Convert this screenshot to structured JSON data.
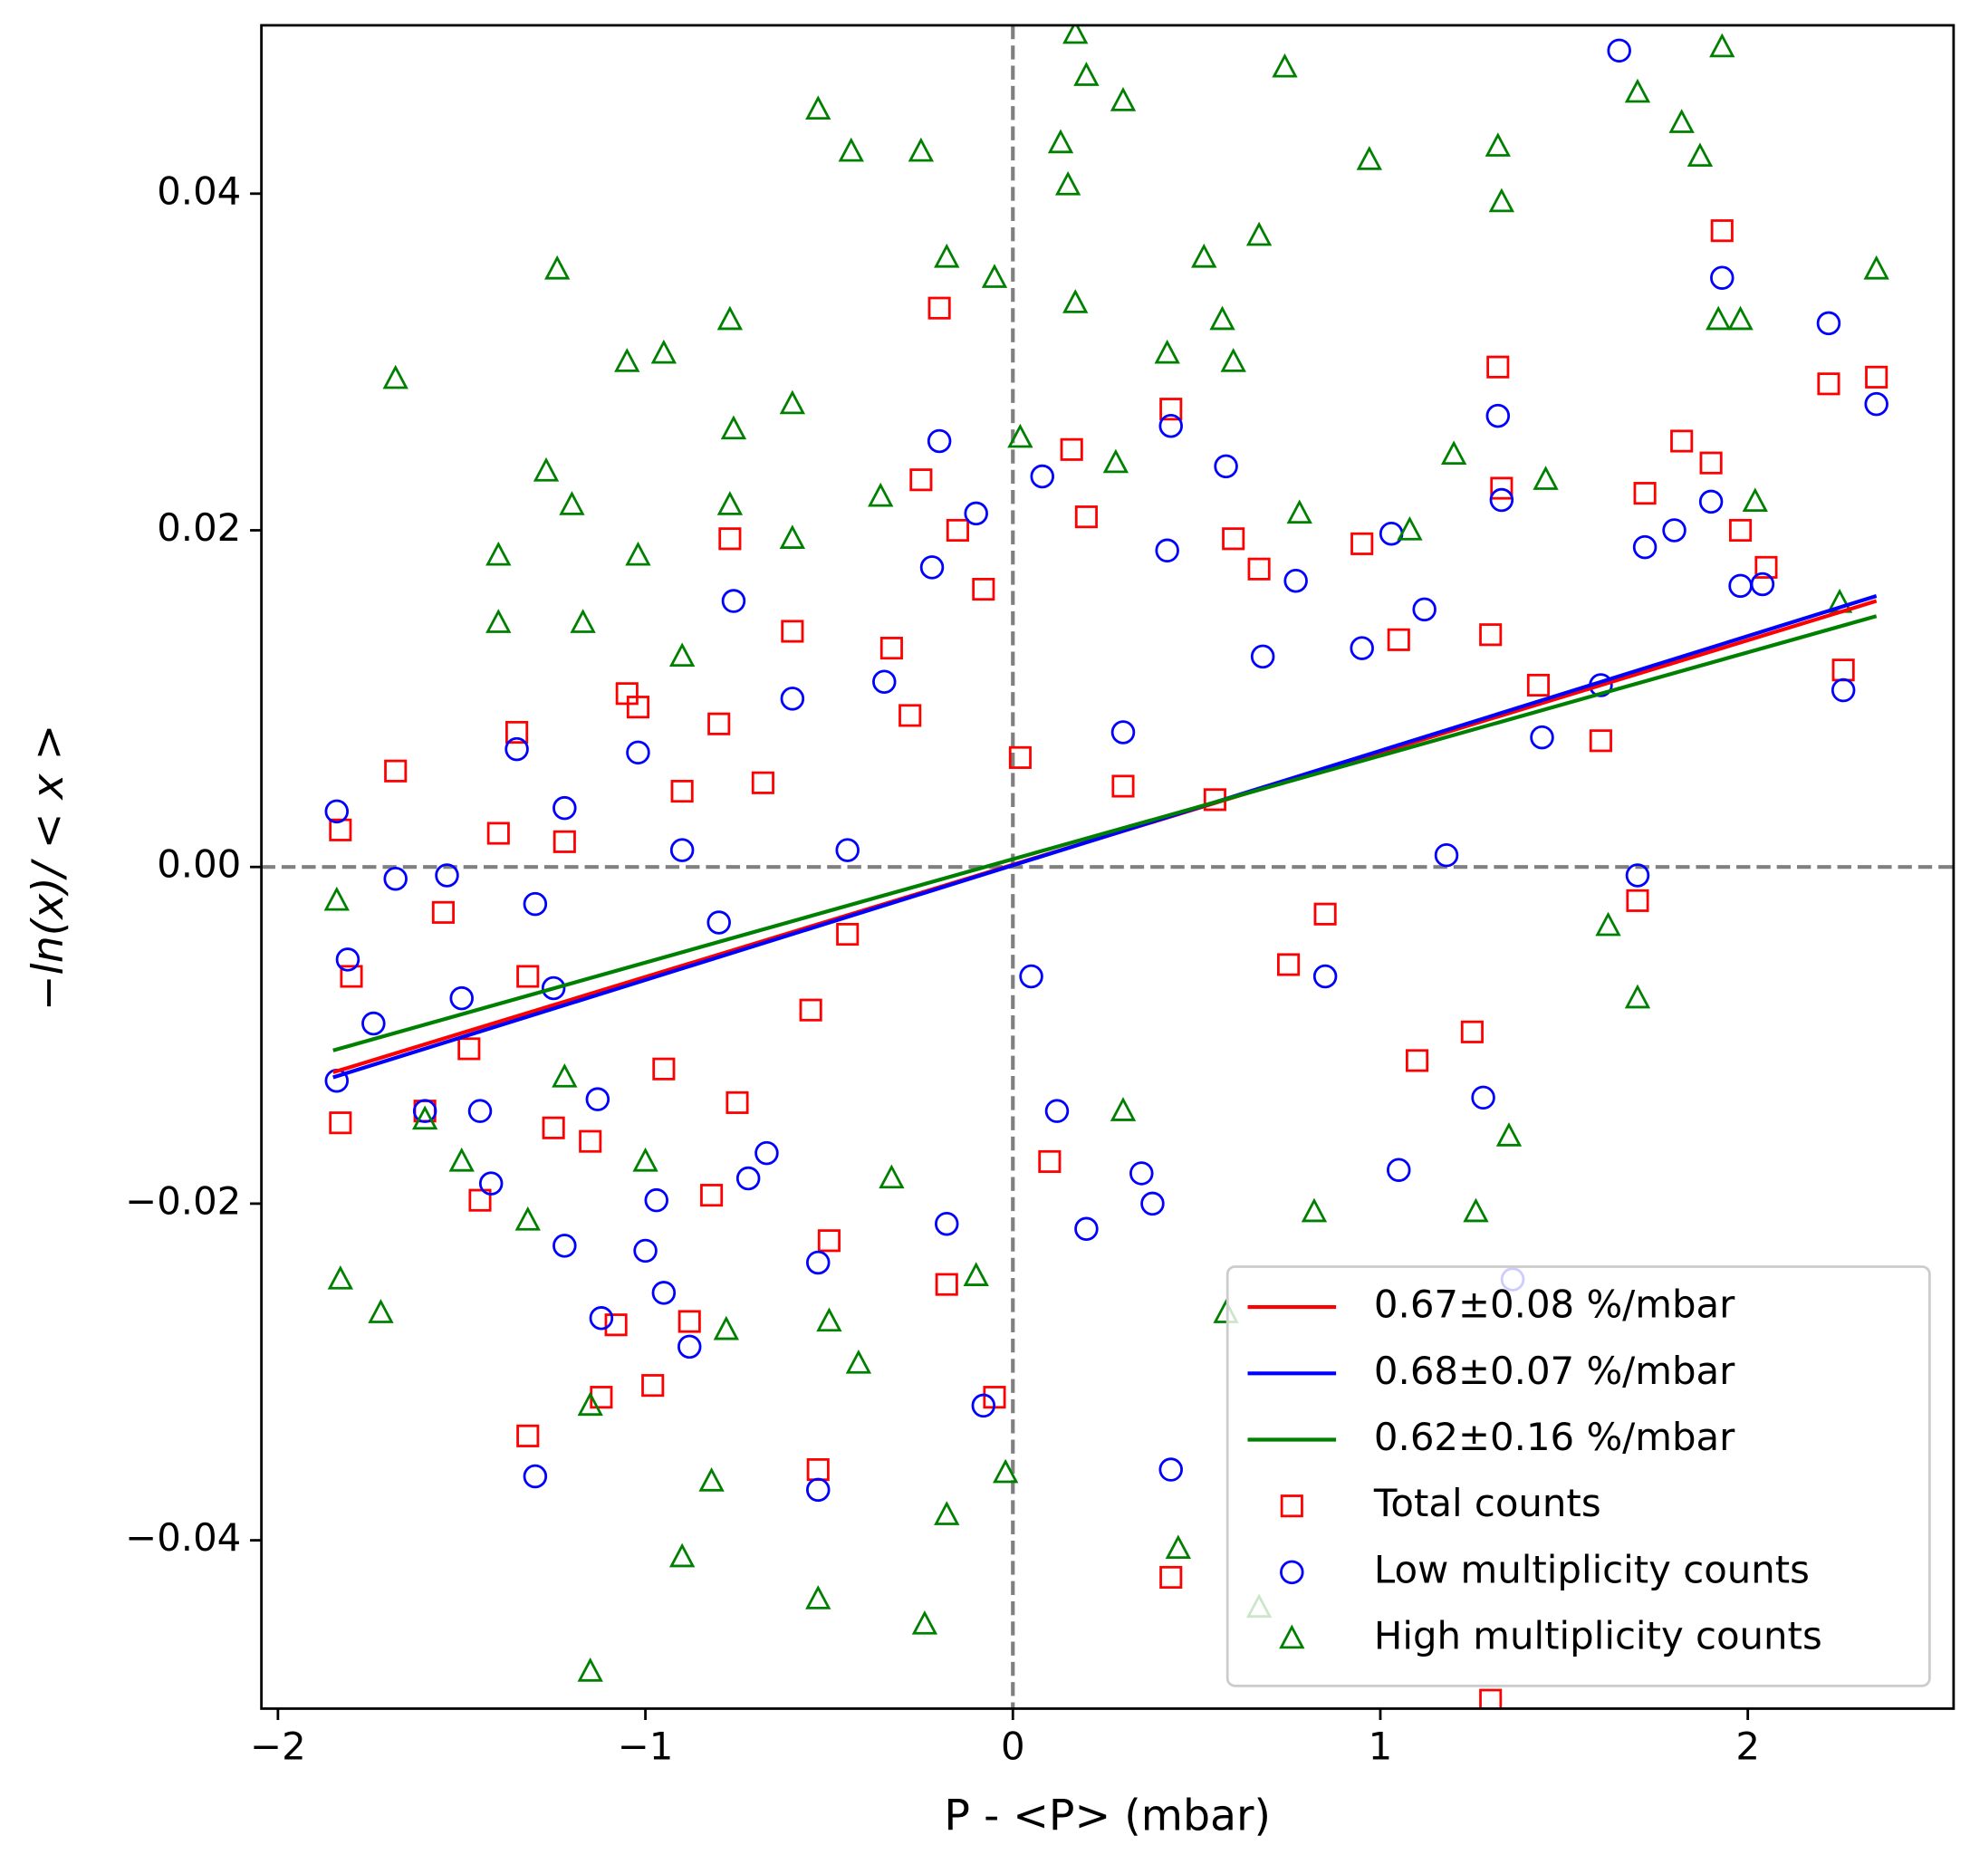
{
  "chart_data": {
    "type": "scatter",
    "x_label": "P - <P> (mbar)",
    "y_label": "−ln(x)/ < x >",
    "xlim": [
      -2.045,
      2.56
    ],
    "ylim": [
      -0.05,
      0.05
    ],
    "xticks": [
      {
        "value": -2,
        "label": "−2"
      },
      {
        "value": -1,
        "label": "−1"
      },
      0,
      1,
      2
    ],
    "yticks": [
      {
        "value": -0.04,
        "label": "−0.04"
      },
      {
        "value": -0.02,
        "label": "−0.02"
      },
      {
        "value": 0,
        "label": "0.00"
      },
      0.02,
      0.04
    ],
    "reference_lines": {
      "x": [
        0
      ],
      "y": [
        0
      ],
      "color": "#808080"
    },
    "legend": "lower right",
    "series": [
      {
        "name": "Total counts",
        "type": "scatter",
        "marker": "square",
        "color": "#ff0000",
        "x": [
          -1.83,
          -1.8,
          -1.83,
          -1.68,
          -1.6,
          -1.55,
          -1.48,
          -1.45,
          -1.4,
          -1.35,
          -1.32,
          -1.32,
          -1.25,
          -1.22,
          -1.15,
          -1.12,
          -1.08,
          -1.05,
          -1.02,
          -0.98,
          -0.95,
          -0.9,
          -0.88,
          -0.82,
          -0.8,
          -0.77,
          -0.75,
          -0.68,
          -0.6,
          -0.55,
          -0.53,
          -0.5,
          -0.45,
          -0.33,
          -0.28,
          -0.25,
          -0.2,
          -0.18,
          -0.15,
          -0.08,
          -0.05,
          0.02,
          0.1,
          0.16,
          0.2,
          0.3,
          0.43,
          0.43,
          0.55,
          0.6,
          0.67,
          0.75,
          0.85,
          0.95,
          1.05,
          1.1,
          1.25,
          1.3,
          1.32,
          1.33,
          1.3,
          1.43,
          1.6,
          1.7,
          1.72,
          1.82,
          1.9,
          1.93,
          1.98,
          2.05,
          2.22,
          2.26,
          2.35
        ],
        "values": [
          0.0022,
          -0.0065,
          -0.0152,
          0.0057,
          -0.0145,
          -0.0027,
          -0.0108,
          -0.0198,
          0.002,
          0.008,
          -0.0065,
          -0.0338,
          -0.0155,
          0.0015,
          -0.0163,
          -0.0315,
          -0.0272,
          0.0103,
          0.0095,
          -0.0308,
          -0.012,
          0.0045,
          -0.027,
          -0.0195,
          0.0085,
          0.0195,
          -0.014,
          0.005,
          0.014,
          -0.0085,
          -0.0358,
          -0.0222,
          -0.004,
          0.013,
          0.009,
          0.023,
          0.0332,
          -0.0248,
          0.02,
          0.0165,
          -0.0315,
          0.0065,
          -0.0175,
          0.0248,
          0.0208,
          0.0048,
          0.0272,
          -0.0422,
          0.004,
          0.0195,
          0.0177,
          -0.0058,
          -0.0028,
          0.0192,
          0.0135,
          -0.0115,
          -0.0098,
          0.0138,
          0.0297,
          0.0225,
          -0.0495,
          0.0108,
          0.0075,
          -0.002,
          0.0222,
          0.0253,
          0.024,
          0.0378,
          0.02,
          0.0178,
          0.0287,
          0.0117,
          0.0291
        ]
      },
      {
        "name": "Low multiplicity counts",
        "type": "scatter",
        "marker": "circle",
        "color": "#0000ff",
        "x": [
          -1.84,
          -1.81,
          -1.84,
          -1.74,
          -1.68,
          -1.6,
          -1.54,
          -1.5,
          -1.45,
          -1.42,
          -1.35,
          -1.3,
          -1.3,
          -1.25,
          -1.22,
          -1.22,
          -1.13,
          -1.12,
          -1.02,
          -1.0,
          -0.97,
          -0.95,
          -0.9,
          -0.88,
          -0.8,
          -0.76,
          -0.72,
          -0.67,
          -0.6,
          -0.53,
          -0.53,
          -0.45,
          -0.35,
          -0.22,
          -0.2,
          -0.18,
          -0.1,
          -0.08,
          0.05,
          0.08,
          0.12,
          0.2,
          0.3,
          0.35,
          0.38,
          0.42,
          0.43,
          0.43,
          0.58,
          0.68,
          0.77,
          0.85,
          0.95,
          1.03,
          1.05,
          1.12,
          1.18,
          1.28,
          1.32,
          1.33,
          1.36,
          1.44,
          1.6,
          1.7,
          1.72,
          1.65,
          1.8,
          1.9,
          1.93,
          1.98,
          2.04,
          2.22,
          2.26,
          2.35
        ],
        "values": [
          0.0033,
          -0.0055,
          -0.0127,
          -0.0093,
          -0.0007,
          -0.0145,
          -0.0005,
          -0.0078,
          -0.0145,
          -0.0188,
          0.007,
          -0.0022,
          -0.0362,
          -0.0072,
          0.0035,
          -0.0225,
          -0.0138,
          -0.0268,
          0.0068,
          -0.0228,
          -0.0198,
          -0.0253,
          0.001,
          -0.0285,
          -0.0033,
          0.0158,
          -0.0185,
          -0.017,
          0.01,
          -0.037,
          -0.0235,
          0.001,
          0.011,
          0.0178,
          0.0253,
          -0.0212,
          0.021,
          -0.032,
          -0.0065,
          0.0232,
          -0.0145,
          -0.0215,
          0.008,
          -0.0182,
          -0.02,
          0.0188,
          0.0262,
          -0.0358,
          0.0238,
          0.0125,
          0.017,
          -0.0065,
          0.013,
          0.0198,
          -0.018,
          0.0153,
          0.0007,
          -0.0137,
          0.0268,
          0.0218,
          -0.0245,
          0.0077,
          0.0108,
          -0.0005,
          0.019,
          0.0485,
          0.02,
          0.0217,
          0.035,
          0.0167,
          0.0168,
          0.0323,
          0.0105,
          0.0275
        ]
      },
      {
        "name": "High multiplicity counts",
        "type": "scatter",
        "marker": "triangle",
        "color": "#008000",
        "x": [
          -1.84,
          -1.83,
          -1.68,
          -1.72,
          -1.6,
          -1.5,
          -1.4,
          -1.4,
          -1.32,
          -1.27,
          -1.24,
          -1.22,
          -1.2,
          -1.17,
          -1.15,
          -1.15,
          -1.05,
          -1.02,
          -1.0,
          -0.95,
          -0.9,
          -0.9,
          -0.82,
          -0.77,
          -0.76,
          -0.77,
          -0.78,
          -0.6,
          -0.6,
          -0.53,
          -0.53,
          -0.5,
          -0.44,
          -0.42,
          -0.36,
          -0.33,
          -0.25,
          -0.24,
          -0.18,
          -0.18,
          -0.1,
          -0.05,
          -0.02,
          0.02,
          0.13,
          0.15,
          0.17,
          0.2,
          0.17,
          0.28,
          0.3,
          0.3,
          0.42,
          0.45,
          0.52,
          0.57,
          0.6,
          0.58,
          0.67,
          0.67,
          0.74,
          0.78,
          0.82,
          0.97,
          1.08,
          1.2,
          1.26,
          1.32,
          1.33,
          1.35,
          1.45,
          1.62,
          1.7,
          1.7,
          1.82,
          1.87,
          1.92,
          1.93,
          1.98,
          2.02,
          2.25,
          2.35
        ],
        "values": [
          -0.002,
          -0.0245,
          0.029,
          -0.0265,
          -0.015,
          -0.0175,
          0.0185,
          0.0145,
          -0.021,
          0.0235,
          0.0355,
          -0.0125,
          0.0215,
          0.0145,
          -0.032,
          -0.0478,
          0.03,
          0.0185,
          -0.0175,
          0.0305,
          0.0125,
          -0.041,
          -0.0365,
          0.0325,
          0.026,
          0.0215,
          -0.0275,
          0.0275,
          0.0195,
          0.045,
          -0.0435,
          -0.027,
          0.0425,
          -0.0295,
          0.022,
          -0.0185,
          0.0425,
          -0.045,
          0.0362,
          -0.0385,
          -0.0243,
          0.035,
          -0.036,
          0.0255,
          0.043,
          0.0405,
          0.0495,
          0.047,
          0.0335,
          0.024,
          0.0455,
          -0.0145,
          0.0305,
          -0.0405,
          0.0362,
          0.0325,
          0.03,
          -0.0265,
          0.0375,
          -0.044,
          0.0475,
          0.021,
          -0.0205,
          0.042,
          0.02,
          0.0245,
          -0.0205,
          0.0428,
          0.0395,
          -0.016,
          0.023,
          -0.0035,
          -0.0078,
          0.046,
          0.0442,
          0.0422,
          0.0325,
          0.0487,
          0.0325,
          0.0217,
          0.0157,
          0.0355
        ]
      },
      {
        "name": "0.67±0.08 %/mbar",
        "type": "line",
        "color": "#ff0000",
        "x": [
          -1.85,
          2.35
        ],
        "values": [
          -0.0122,
          0.0158
        ]
      },
      {
        "name": "0.68±0.07 %/mbar",
        "type": "line",
        "color": "#0000ff",
        "x": [
          -1.85,
          2.35
        ],
        "values": [
          -0.0125,
          0.0161
        ]
      },
      {
        "name": "0.62±0.16 %/mbar",
        "type": "line",
        "color": "#008000",
        "x": [
          -1.85,
          2.35
        ],
        "values": [
          -0.0109,
          0.0149
        ]
      }
    ]
  }
}
